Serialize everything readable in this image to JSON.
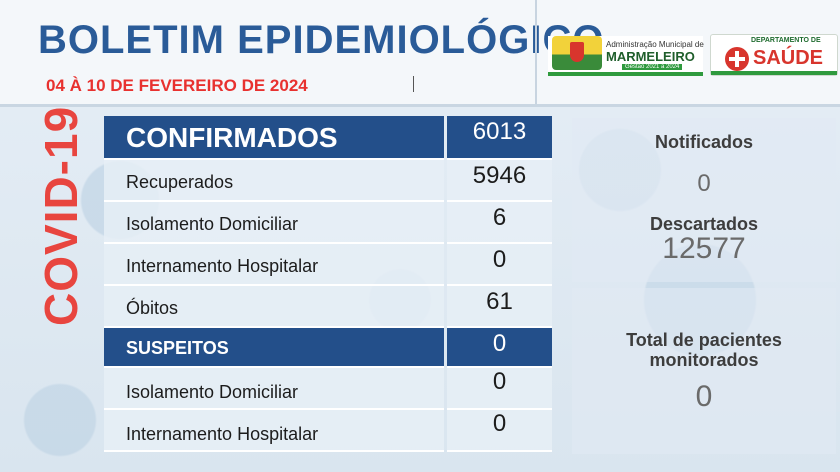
{
  "header": {
    "title": "BOLETIM EPIDEMIOLÓGICO",
    "date_range": "04 À 10 DE FEVEREIRO DE 2024"
  },
  "logos": {
    "municipal": {
      "small_text": "Administração Municipal de",
      "name": "MARMELEIRO",
      "period": "Gestão 2021 a 2024"
    },
    "health_department": {
      "top_text": "DEPARTAMENTO DE",
      "name": "SAÚDE"
    }
  },
  "side_label": "COVID-19",
  "table": {
    "confirmed": {
      "label": "CONFIRMADOS",
      "value": "6013"
    },
    "confirmed_rows": [
      {
        "label": "Recuperados",
        "value": "5946"
      },
      {
        "label": "Isolamento Domiciliar",
        "value": "6"
      },
      {
        "label": "Internamento Hospitalar",
        "value": "0"
      },
      {
        "label": "Óbitos",
        "value": "61"
      }
    ],
    "suspected": {
      "label": "SUSPEITOS",
      "value": "0"
    },
    "suspected_rows": [
      {
        "label": "Isolamento Domiciliar",
        "value": "0"
      },
      {
        "label": "Internamento Hospitalar",
        "value": "0"
      }
    ]
  },
  "stats": {
    "notified": {
      "label": "Notificados",
      "value": "0"
    },
    "discarded": {
      "label": "Descartados",
      "value": "12577"
    },
    "monitored": {
      "label_line1": "Total de pacientes",
      "label_line2": "monitorados",
      "value": "0"
    }
  },
  "colors": {
    "title_blue": "#2a5b98",
    "header_row_blue": "#234f8a",
    "accent_red": "#e8312f",
    "brand_green": "#2f9a3e"
  }
}
